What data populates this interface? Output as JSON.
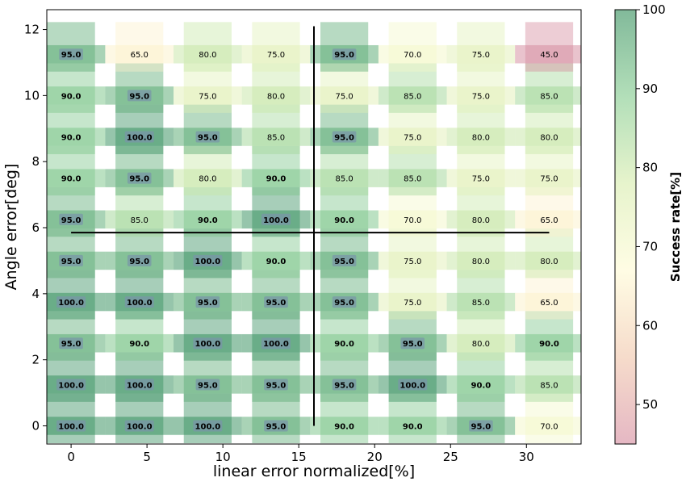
{
  "chart_data": {
    "type": "heatmap",
    "xlabel": "linear error normalized[%]",
    "ylabel": "Angle error[deg]",
    "colorbar_label": "Success rate[%]",
    "xlim": [
      -1.6,
      33.6
    ],
    "ylim": [
      -0.55,
      12.6
    ],
    "x_ticks": [
      0,
      5,
      10,
      15,
      20,
      25,
      30
    ],
    "y_ticks": [
      0,
      2,
      4,
      6,
      8,
      10,
      12
    ],
    "colorbar_range": [
      45,
      100
    ],
    "colorbar_ticks": [
      50,
      60,
      70,
      80,
      90,
      100
    ],
    "colormap": [
      "#d4889c",
      "#f0c4a8",
      "#fffbd2",
      "#d6ecaa",
      "#7fc98a",
      "#2e8b57"
    ],
    "x_positions": [
      0,
      4.5,
      9.0,
      13.5,
      18.0,
      22.5,
      27.0,
      31.5
    ],
    "y_positions": [
      0,
      1.25,
      2.5,
      3.75,
      5.0,
      6.25,
      7.5,
      8.75,
      10.0,
      11.25
    ],
    "values": [
      [
        100,
        100,
        100,
        95,
        90,
        90,
        95,
        70
      ],
      [
        100,
        100,
        95,
        95,
        95,
        100,
        90,
        85
      ],
      [
        95,
        90,
        100,
        100,
        90,
        95,
        80,
        90
      ],
      [
        100,
        100,
        95,
        95,
        95,
        75,
        85,
        65
      ],
      [
        95,
        95,
        100,
        90,
        95,
        75,
        80,
        80
      ],
      [
        95,
        85,
        90,
        100,
        90,
        70,
        80,
        65
      ],
      [
        90,
        95,
        80,
        90,
        85,
        85,
        75,
        75
      ],
      [
        90,
        100,
        95,
        85,
        95,
        75,
        80,
        80
      ],
      [
        90,
        95,
        75,
        80,
        75,
        85,
        75,
        85
      ],
      [
        95,
        65,
        80,
        75,
        95,
        70,
        75,
        45
      ]
    ],
    "labels": [
      [
        "100.0",
        "100.0",
        "100.0",
        "95.0",
        "90.0",
        "90.0",
        "95.0",
        "70.0"
      ],
      [
        "100.0",
        "100.0",
        "95.0",
        "95.0",
        "95.0",
        "100.0",
        "90.0",
        "85.0"
      ],
      [
        "95.0",
        "90.0",
        "100.0",
        "100.0",
        "90.0",
        "95.0",
        "80.0",
        "90.0"
      ],
      [
        "100.0",
        "100.0",
        "95.0",
        "95.0",
        "95.0",
        "75.0",
        "85.0",
        "65.0"
      ],
      [
        "95.0",
        "95.0",
        "100.0",
        "90.0",
        "95.0",
        "75.0",
        "80.0",
        "80.0"
      ],
      [
        "95.0",
        "85.0",
        "90.0",
        "100.0",
        "90.0",
        "70.0",
        "80.0",
        "65.0"
      ],
      [
        "90.0",
        "95.0",
        "80.0",
        "90.0",
        "85.0",
        "85.0",
        "75.0",
        "75.0"
      ],
      [
        "90.0",
        "100.0",
        "95.0",
        "85.0",
        "95.0",
        "75.0",
        "80.0",
        "80.0"
      ],
      [
        "90.0",
        "95.0",
        "75.0",
        "80.0",
        "75.0",
        "85.0",
        "75.0",
        "85.0"
      ],
      [
        "95.0",
        "65.0",
        "80.0",
        "75.0",
        "95.0",
        "70.0",
        "75.0",
        "45.0"
      ]
    ],
    "crosshair": {
      "x": 16,
      "y": 5.85,
      "x_span": [
        0,
        31.5
      ],
      "y_span": [
        0,
        12.1
      ]
    }
  }
}
